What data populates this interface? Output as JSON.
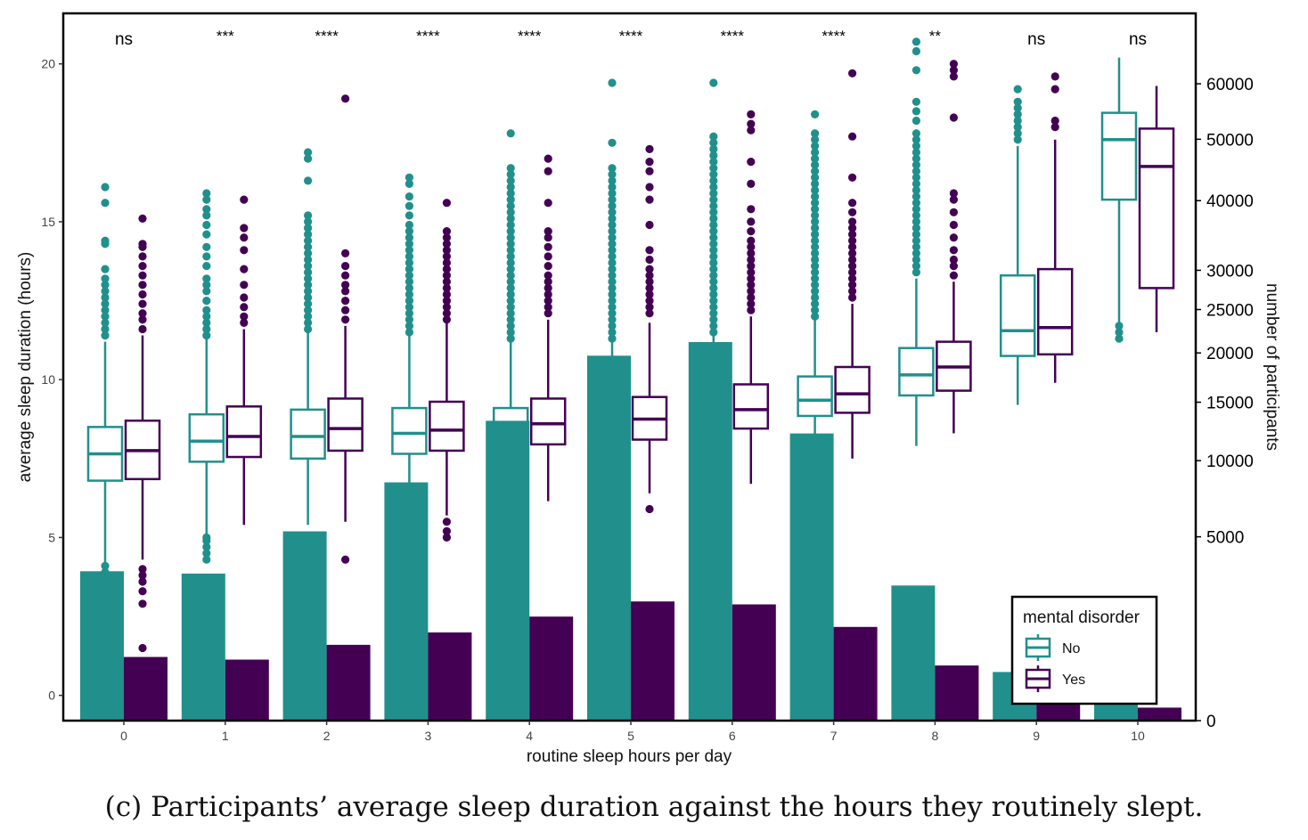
{
  "caption": "(c) Participants’ average sleep duration against the hours they routinely slept.",
  "colors": {
    "No": "#21908c",
    "Yes": "#440154"
  },
  "chart_data": {
    "type": "box",
    "xlabel": "routine sleep hours per day",
    "ylabel": "average sleep duration (hours)",
    "y2label": "number of participants",
    "categories": [
      "0",
      "1",
      "2",
      "3",
      "4",
      "5",
      "6",
      "7",
      "8",
      "9",
      "10"
    ],
    "ylim": [
      -0.8,
      21.6
    ],
    "yticks": [
      0,
      5,
      10,
      15,
      20
    ],
    "y2lim": [
      0,
      74000
    ],
    "y2scale": "sqrt",
    "y2ticks": [
      0,
      5000,
      10000,
      15000,
      20000,
      25000,
      30000,
      40000,
      50000,
      60000
    ],
    "significance": [
      "ns",
      "***",
      "****",
      "****",
      "****",
      "****",
      "****",
      "****",
      "**",
      "ns",
      "ns"
    ],
    "legend": {
      "title": "mental disorder",
      "entries": [
        "No",
        "Yes"
      ],
      "position": "bottom-right"
    },
    "box_series": [
      {
        "name": "No",
        "boxes": [
          {
            "whisker_low": -0.1,
            "q1": 6.8,
            "median": 7.65,
            "q3": 8.5,
            "whisker_high": 11.2
          },
          {
            "whisker_low": 5.1,
            "q1": 7.4,
            "median": 8.05,
            "q3": 8.9,
            "whisker_high": 11.3
          },
          {
            "whisker_low": 5.4,
            "q1": 7.5,
            "median": 8.2,
            "q3": 9.05,
            "whisker_high": 11.5
          },
          {
            "whisker_low": 5.6,
            "q1": 7.65,
            "median": 8.3,
            "q3": 9.1,
            "whisker_high": 11.4
          },
          {
            "whisker_low": 5.75,
            "q1": 7.8,
            "median": 8.4,
            "q3": 9.1,
            "whisker_high": 11.2
          },
          {
            "whisker_low": 6.1,
            "q1": 8.0,
            "median": 8.55,
            "q3": 9.25,
            "whisker_high": 11.2
          },
          {
            "whisker_low": 6.5,
            "q1": 8.35,
            "median": 8.9,
            "q3": 9.55,
            "whisker_high": 11.4
          },
          {
            "whisker_low": 7.3,
            "q1": 8.85,
            "median": 9.35,
            "q3": 10.1,
            "whisker_high": 11.9
          },
          {
            "whisker_low": 7.9,
            "q1": 9.5,
            "median": 10.15,
            "q3": 11.0,
            "whisker_high": 13.2
          },
          {
            "whisker_low": 9.2,
            "q1": 10.75,
            "median": 11.55,
            "q3": 13.3,
            "whisker_high": 17.4
          },
          {
            "whisker_low": 11.6,
            "q1": 15.7,
            "median": 17.6,
            "q3": 18.45,
            "whisker_high": 20.2
          }
        ],
        "outliers": [
          [
            0.2,
            0.5,
            0.7,
            0.9,
            1.1,
            1.3,
            1.5,
            1.7,
            1.9,
            2.1,
            2.3,
            2.5,
            2.7,
            2.9,
            3.1,
            3.3,
            3.5,
            3.7,
            3.9,
            4.1,
            11.4,
            11.6,
            11.8,
            12.0,
            12.2,
            12.4,
            12.6,
            12.8,
            13.0,
            13.2,
            13.5,
            14.3,
            14.4,
            15.6,
            16.1
          ],
          [
            2.95,
            3.6,
            4.3,
            4.5,
            4.7,
            4.9,
            5.0,
            11.4,
            11.6,
            11.8,
            12.0,
            12.2,
            12.5,
            12.8,
            13.0,
            13.2,
            13.6,
            13.9,
            14.2,
            14.6,
            14.9,
            15.2,
            15.4,
            15.7,
            15.9
          ],
          [
            4.7,
            4.95,
            11.6,
            11.8,
            12.0,
            12.2,
            12.4,
            12.6,
            12.8,
            13.0,
            13.2,
            13.4,
            13.6,
            13.8,
            14.0,
            14.2,
            14.4,
            14.6,
            14.8,
            15.0,
            15.2,
            16.3,
            17.0,
            17.2
          ],
          [
            4.6,
            4.8,
            5.2,
            5.4,
            11.5,
            11.7,
            11.9,
            12.1,
            12.3,
            12.5,
            12.7,
            12.9,
            13.1,
            13.3,
            13.5,
            13.7,
            13.9,
            14.1,
            14.3,
            14.5,
            14.7,
            14.9,
            15.2,
            15.5,
            15.8,
            16.2,
            16.4
          ],
          [
            5.3,
            5.45,
            5.6,
            11.3,
            11.5,
            11.7,
            11.9,
            12.1,
            12.3,
            12.5,
            12.7,
            12.9,
            13.1,
            13.3,
            13.5,
            13.7,
            13.9,
            14.1,
            14.3,
            14.5,
            14.7,
            14.9,
            15.1,
            15.3,
            15.5,
            15.7,
            15.9,
            16.1,
            16.3,
            16.5,
            16.7,
            17.8
          ],
          [
            5.95,
            11.3,
            11.5,
            11.7,
            11.9,
            12.1,
            12.3,
            12.5,
            12.7,
            12.9,
            13.1,
            13.3,
            13.5,
            13.7,
            13.9,
            14.1,
            14.3,
            14.5,
            14.7,
            14.9,
            15.1,
            15.3,
            15.5,
            15.7,
            15.9,
            16.1,
            16.3,
            16.5,
            16.7,
            17.5,
            19.4
          ],
          [
            6.4,
            11.5,
            11.7,
            11.9,
            12.1,
            12.3,
            12.5,
            12.7,
            12.9,
            13.1,
            13.3,
            13.5,
            13.7,
            13.9,
            14.1,
            14.3,
            14.5,
            14.7,
            14.9,
            15.1,
            15.3,
            15.5,
            15.7,
            15.9,
            16.1,
            16.3,
            16.5,
            16.7,
            16.9,
            17.1,
            17.3,
            17.5,
            17.7,
            19.4
          ],
          [
            12.0,
            12.2,
            12.4,
            12.6,
            12.8,
            13.0,
            13.2,
            13.4,
            13.6,
            13.8,
            14.0,
            14.2,
            14.4,
            14.6,
            14.8,
            15.0,
            15.2,
            15.4,
            15.6,
            15.8,
            16.0,
            16.2,
            16.4,
            16.6,
            16.8,
            17.0,
            17.2,
            17.4,
            17.6,
            17.8,
            18.4
          ],
          [
            13.4,
            13.6,
            13.8,
            14.0,
            14.2,
            14.4,
            14.6,
            14.8,
            15.0,
            15.2,
            15.4,
            15.6,
            15.8,
            16.0,
            16.2,
            16.4,
            16.6,
            16.8,
            17.0,
            17.2,
            17.4,
            17.6,
            17.8,
            18.2,
            18.5,
            18.8,
            19.8,
            20.4,
            20.7
          ],
          [
            17.6,
            17.8,
            18.0,
            18.2,
            18.4,
            18.6,
            18.8,
            19.2
          ],
          [
            11.3,
            11.5,
            11.7
          ]
        ]
      },
      {
        "name": "Yes",
        "boxes": [
          {
            "whisker_low": 4.3,
            "q1": 6.85,
            "median": 7.75,
            "q3": 8.7,
            "whisker_high": 11.4
          },
          {
            "whisker_low": 5.4,
            "q1": 7.55,
            "median": 8.2,
            "q3": 9.15,
            "whisker_high": 11.6
          },
          {
            "whisker_low": 5.5,
            "q1": 7.75,
            "median": 8.45,
            "q3": 9.4,
            "whisker_high": 11.7
          },
          {
            "whisker_low": 5.7,
            "q1": 7.75,
            "median": 8.4,
            "q3": 9.3,
            "whisker_high": 11.8
          },
          {
            "whisker_low": 6.15,
            "q1": 7.95,
            "median": 8.6,
            "q3": 9.4,
            "whisker_high": 11.9
          },
          {
            "whisker_low": 6.4,
            "q1": 8.1,
            "median": 8.75,
            "q3": 9.45,
            "whisker_high": 11.8
          },
          {
            "whisker_low": 6.7,
            "q1": 8.45,
            "median": 9.05,
            "q3": 9.85,
            "whisker_high": 12.0
          },
          {
            "whisker_low": 7.5,
            "q1": 8.95,
            "median": 9.55,
            "q3": 10.4,
            "whisker_high": 12.4
          },
          {
            "whisker_low": 8.3,
            "q1": 9.65,
            "median": 10.4,
            "q3": 11.2,
            "whisker_high": 13.1
          },
          {
            "whisker_low": 9.9,
            "q1": 10.8,
            "median": 11.65,
            "q3": 13.5,
            "whisker_high": 17.6
          },
          {
            "whisker_low": 11.5,
            "q1": 12.9,
            "median": 16.75,
            "q3": 17.95,
            "whisker_high": 19.3
          }
        ],
        "outliers": [
          [
            1.5,
            2.9,
            3.3,
            3.6,
            3.8,
            4.0,
            11.6,
            11.9,
            12.1,
            12.4,
            12.7,
            13.0,
            13.3,
            13.6,
            13.9,
            14.2,
            14.3,
            15.1
          ],
          [
            11.8,
            12.0,
            12.3,
            12.6,
            13.0,
            13.5,
            14.1,
            14.5,
            14.8,
            15.7
          ],
          [
            4.3,
            11.9,
            12.2,
            12.5,
            12.8,
            13.0,
            13.3,
            13.6,
            14.0,
            18.9
          ],
          [
            5.0,
            5.2,
            5.5,
            11.9,
            12.1,
            12.3,
            12.5,
            12.7,
            12.9,
            13.1,
            13.3,
            13.5,
            13.7,
            13.9,
            14.1,
            14.3,
            14.5,
            14.7,
            15.6
          ],
          [
            12.1,
            12.3,
            12.5,
            12.7,
            12.9,
            13.1,
            13.3,
            13.6,
            13.9,
            14.2,
            14.5,
            14.7,
            15.6,
            16.6,
            17.0
          ],
          [
            5.9,
            12.1,
            12.3,
            12.5,
            12.7,
            12.9,
            13.1,
            13.3,
            13.5,
            13.8,
            14.1,
            14.9,
            15.7,
            16.1,
            16.6,
            16.9,
            17.3
          ],
          [
            12.2,
            12.4,
            12.6,
            12.8,
            13.0,
            13.2,
            13.4,
            13.6,
            13.8,
            14.0,
            14.2,
            14.4,
            14.7,
            15.0,
            15.4,
            16.2,
            16.9,
            17.9,
            18.1,
            18.4
          ],
          [
            12.6,
            12.8,
            13.0,
            13.2,
            13.4,
            13.6,
            13.8,
            14.0,
            14.2,
            14.4,
            14.6,
            14.8,
            15.0,
            15.3,
            15.6,
            16.4,
            17.7,
            19.7
          ],
          [
            13.3,
            13.6,
            13.8,
            14.1,
            14.5,
            14.9,
            15.3,
            15.7,
            15.9,
            18.3,
            19.6,
            19.8,
            20.0
          ],
          [
            18.0,
            18.2,
            19.2,
            19.6
          ],
          []
        ]
      }
    ],
    "count_series": [
      {
        "name": "No",
        "values": [
          3300,
          3200,
          5300,
          8400,
          13300,
          19700,
          21200,
          12200,
          2700,
          350,
          40
        ]
      },
      {
        "name": "Yes",
        "values": [
          600,
          550,
          850,
          1150,
          1600,
          2100,
          2000,
          1300,
          450,
          120,
          25
        ]
      }
    ]
  }
}
